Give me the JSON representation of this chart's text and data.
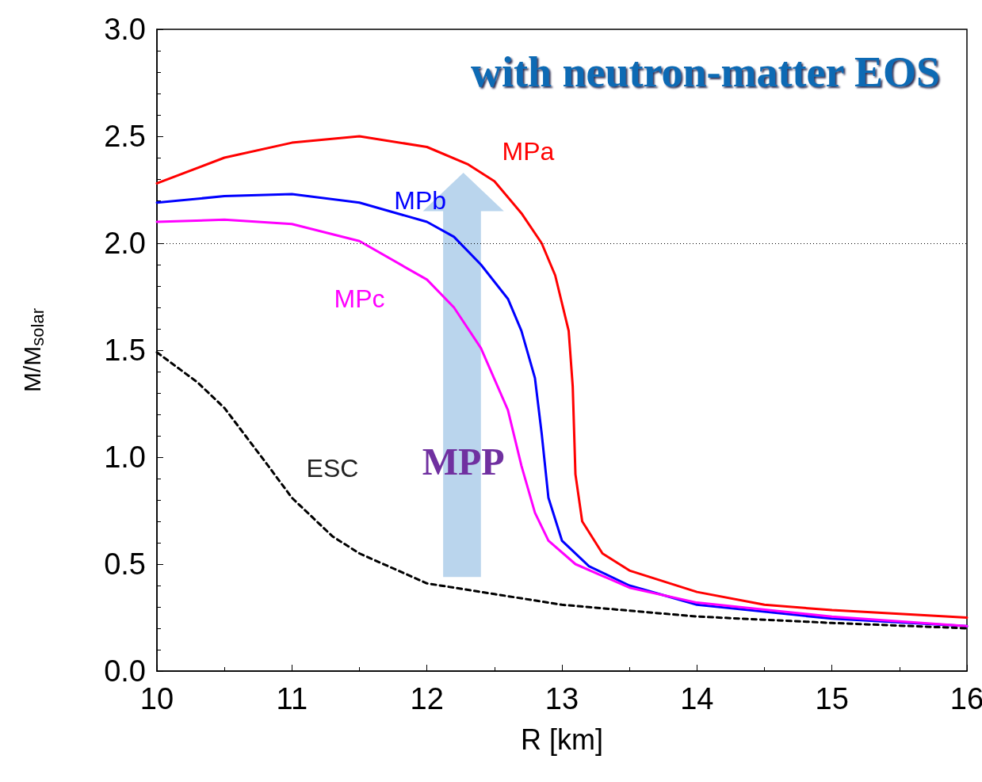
{
  "chart_data": {
    "type": "line",
    "xlabel": "R [km]",
    "ylabel": "M/M$_{solar}$",
    "annotations": [
      "with neutron-matter EOS",
      "MPP"
    ],
    "xlim": [
      10,
      16
    ],
    "xticks": [
      10,
      11,
      12,
      13,
      14,
      15,
      16
    ],
    "ylim": [
      0,
      3
    ],
    "yticks": [
      {
        "value": 0,
        "label": "0.0"
      },
      0.5,
      {
        "value": 1,
        "label": "1.0"
      },
      1.5,
      {
        "value": 2,
        "label": "2.0"
      },
      2.5,
      {
        "value": 3,
        "label": "3.0"
      }
    ],
    "grid": false,
    "legend": false,
    "marker": "none",
    "ref_lines": [
      {
        "axis": "y",
        "value": 2,
        "color": "#000000",
        "line_style": "dotted"
      }
    ],
    "series": [
      {
        "name": "MPa",
        "color": "#ff0000",
        "line_style": "solid",
        "x": [
          10,
          10.5,
          11,
          11.5,
          12,
          12.3,
          12.5,
          12.7,
          12.85,
          12.95,
          13.05,
          13.08,
          13.1,
          13.15,
          13.3,
          13.5,
          14,
          14.5,
          15,
          16
        ],
        "values": [
          2.28,
          2.4,
          2.47,
          2.5,
          2.45,
          2.37,
          2.29,
          2.14,
          2.0,
          1.85,
          1.59,
          1.33,
          0.92,
          0.7,
          0.55,
          0.47,
          0.37,
          0.31,
          0.285,
          0.25
        ]
      },
      {
        "name": "MPb",
        "color": "#0000ff",
        "line_style": "solid",
        "x": [
          10,
          10.5,
          11,
          11.5,
          12,
          12.2,
          12.4,
          12.6,
          12.7,
          12.8,
          12.85,
          12.9,
          13,
          13.2,
          13.5,
          14,
          15,
          16
        ],
        "values": [
          2.19,
          2.22,
          2.23,
          2.19,
          2.1,
          2.03,
          1.9,
          1.74,
          1.59,
          1.37,
          1.11,
          0.81,
          0.61,
          0.49,
          0.4,
          0.31,
          0.245,
          0.21
        ]
      },
      {
        "name": "MPc",
        "color": "#ff00ff",
        "line_style": "solid",
        "x": [
          10,
          10.5,
          11,
          11.5,
          12,
          12.2,
          12.4,
          12.6,
          12.7,
          12.8,
          12.9,
          13.1,
          13.5,
          14,
          15,
          16
        ],
        "values": [
          2.1,
          2.11,
          2.09,
          2.01,
          1.83,
          1.7,
          1.51,
          1.22,
          0.96,
          0.74,
          0.61,
          0.5,
          0.39,
          0.32,
          0.255,
          0.21
        ]
      },
      {
        "name": "ESC",
        "color": "#000000",
        "line_style": "dashed",
        "x": [
          10,
          10.3,
          10.5,
          10.8,
          11,
          11.3,
          11.5,
          12,
          12.5,
          13,
          14,
          15,
          16
        ],
        "values": [
          1.49,
          1.35,
          1.23,
          0.98,
          0.81,
          0.63,
          0.55,
          0.41,
          0.36,
          0.31,
          0.255,
          0.225,
          0.2
        ]
      }
    ]
  }
}
